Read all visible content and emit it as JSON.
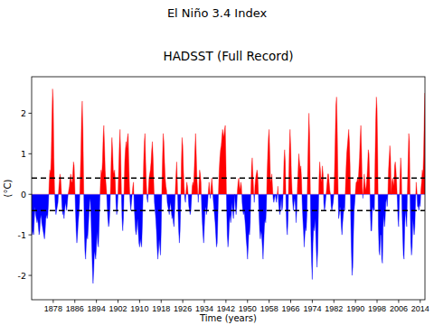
{
  "chart_data": {
    "type": "area",
    "title": "El Niño 3.4 Index",
    "subtitle": "HADSST (Full Record)",
    "x_label": "Time (years)",
    "y_label": "(°C)",
    "colors": [
      "#ff0000",
      "#0000ff"
    ],
    "reference_lines": [
      0.4,
      -0.4
    ],
    "xlim": [
      1870,
      2015.75
    ],
    "ylim": [
      -2.6,
      2.9
    ],
    "xticks": [
      1878,
      1886,
      1894,
      1902,
      1910,
      1918,
      1926,
      1934,
      1942,
      1950,
      1958,
      1966,
      1974,
      1982,
      1990,
      1998,
      2006,
      2014
    ],
    "yticks": [
      -2,
      -1,
      0,
      1,
      2
    ],
    "x": [
      1870,
      1870.25,
      1870.5,
      1870.75,
      1871,
      1871.25,
      1871.5,
      1871.75,
      1872,
      1872.25,
      1872.5,
      1872.75,
      1873,
      1873.25,
      1873.5,
      1873.75,
      1874,
      1874.25,
      1874.5,
      1874.75,
      1875,
      1875.25,
      1875.5,
      1875.75,
      1876,
      1876.25,
      1876.5,
      1876.75,
      1877,
      1877.25,
      1877.5,
      1877.75,
      1878,
      1878.25,
      1878.5,
      1878.75,
      1879,
      1879.25,
      1879.5,
      1879.75,
      1880,
      1880.25,
      1880.5,
      1880.75,
      1881,
      1881.25,
      1881.5,
      1881.75,
      1882,
      1882.25,
      1882.5,
      1882.75,
      1883,
      1883.25,
      1883.5,
      1883.75,
      1884,
      1884.25,
      1884.5,
      1884.75,
      1885,
      1885.25,
      1885.5,
      1885.75,
      1886,
      1886.25,
      1886.5,
      1886.75,
      1887,
      1887.25,
      1887.5,
      1887.75,
      1888,
      1888.25,
      1888.5,
      1888.75,
      1889,
      1889.25,
      1889.5,
      1889.75,
      1890,
      1890.25,
      1890.5,
      1890.75,
      1891,
      1891.25,
      1891.5,
      1891.75,
      1892,
      1892.25,
      1892.5,
      1892.75,
      1893,
      1893.25,
      1893.5,
      1893.75,
      1894,
      1894.25,
      1894.5,
      1894.75,
      1895,
      1895.25,
      1895.5,
      1895.75,
      1896,
      1896.25,
      1896.5,
      1896.75,
      1897,
      1897.25,
      1897.5,
      1897.75,
      1898,
      1898.25,
      1898.5,
      1898.75,
      1899,
      1899.25,
      1899.5,
      1899.75,
      1900,
      1900.25,
      1900.5,
      1900.75,
      1901,
      1901.25,
      1901.5,
      1901.75,
      1902,
      1902.25,
      1902.5,
      1902.75,
      1903,
      1903.25,
      1903.5,
      1903.75,
      1904,
      1904.25,
      1904.5,
      1904.75,
      1905,
      1905.25,
      1905.5,
      1905.75,
      1906,
      1906.25,
      1906.5,
      1906.75,
      1907,
      1907.25,
      1907.5,
      1907.75,
      1908,
      1908.25,
      1908.5,
      1908.75,
      1909,
      1909.25,
      1909.5,
      1909.75,
      1910,
      1910.25,
      1910.5,
      1910.75,
      1911,
      1911.25,
      1911.5,
      1911.75,
      1912,
      1912.25,
      1912.5,
      1912.75,
      1913,
      1913.25,
      1913.5,
      1913.75,
      1914,
      1914.25,
      1914.5,
      1914.75,
      1915,
      1915.25,
      1915.5,
      1915.75,
      1916,
      1916.25,
      1916.5,
      1916.75,
      1917,
      1917.25,
      1917.5,
      1917.75,
      1918,
      1918.25,
      1918.5,
      1918.75,
      1919,
      1919.25,
      1919.5,
      1919.75,
      1920,
      1920.25,
      1920.5,
      1920.75,
      1921,
      1921.25,
      1921.5,
      1921.75,
      1922,
      1922.25,
      1922.5,
      1922.75,
      1923,
      1923.25,
      1923.5,
      1923.75,
      1924,
      1924.25,
      1924.5,
      1924.75,
      1925,
      1925.25,
      1925.5,
      1925.75,
      1926,
      1926.25,
      1926.5,
      1926.75,
      1927,
      1927.25,
      1927.5,
      1927.75,
      1928,
      1928.25,
      1928.5,
      1928.75,
      1929,
      1929.25,
      1929.5,
      1929.75,
      1930,
      1930.25,
      1930.5,
      1930.75,
      1931,
      1931.25,
      1931.5,
      1931.75,
      1932,
      1932.25,
      1932.5,
      1932.75,
      1933,
      1933.25,
      1933.5,
      1933.75,
      1934,
      1934.25,
      1934.5,
      1934.75,
      1935,
      1935.25,
      1935.5,
      1935.75,
      1936,
      1936.25,
      1936.5,
      1936.75,
      1937,
      1937.25,
      1937.5,
      1937.75,
      1938,
      1938.25,
      1938.5,
      1938.75,
      1939,
      1939.25,
      1939.5,
      1939.75,
      1940,
      1940.25,
      1940.5,
      1940.75,
      1941,
      1941.25,
      1941.5,
      1941.75,
      1942,
      1942.25,
      1942.5,
      1942.75,
      1943,
      1943.25,
      1943.5,
      1943.75,
      1944,
      1944.25,
      1944.5,
      1944.75,
      1945,
      1945.25,
      1945.5,
      1945.75,
      1946,
      1946.25,
      1946.5,
      1946.75,
      1947,
      1947.25,
      1947.5,
      1947.75,
      1948,
      1948.25,
      1948.5,
      1948.75,
      1949,
      1949.25,
      1949.5,
      1949.75,
      1950,
      1950.25,
      1950.5,
      1950.75,
      1951,
      1951.25,
      1951.5,
      1951.75,
      1952,
      1952.25,
      1952.5,
      1952.75,
      1953,
      1953.25,
      1953.5,
      1953.75,
      1954,
      1954.25,
      1954.5,
      1954.75,
      1955,
      1955.25,
      1955.5,
      1955.75,
      1956,
      1956.25,
      1956.5,
      1956.75,
      1957,
      1957.25,
      1957.5,
      1957.75,
      1958,
      1958.25,
      1958.5,
      1958.75,
      1959,
      1959.25,
      1959.5,
      1959.75,
      1960,
      1960.25,
      1960.5,
      1960.75,
      1961,
      1961.25,
      1961.5,
      1961.75,
      1962,
      1962.25,
      1962.5,
      1962.75,
      1963,
      1963.25,
      1963.5,
      1963.75,
      1964,
      1964.25,
      1964.5,
      1964.75,
      1965,
      1965.25,
      1965.5,
      1965.75,
      1966,
      1966.25,
      1966.5,
      1966.75,
      1967,
      1967.25,
      1967.5,
      1967.75,
      1968,
      1968.25,
      1968.5,
      1968.75,
      1969,
      1969.25,
      1969.5,
      1969.75,
      1970,
      1970.25,
      1970.5,
      1970.75,
      1971,
      1971.25,
      1971.5,
      1971.75,
      1972,
      1972.25,
      1972.5,
      1972.75,
      1973,
      1973.25,
      1973.5,
      1973.75,
      1974,
      1974.25,
      1974.5,
      1974.75,
      1975,
      1975.25,
      1975.5,
      1975.75,
      1976,
      1976.25,
      1976.5,
      1976.75,
      1977,
      1977.25,
      1977.5,
      1977.75,
      1978,
      1978.25,
      1978.5,
      1978.75,
      1979,
      1979.25,
      1979.5,
      1979.75,
      1980,
      1980.25,
      1980.5,
      1980.75,
      1981,
      1981.25,
      1981.5,
      1981.75,
      1982,
      1982.25,
      1982.5,
      1982.75,
      1983,
      1983.25,
      1983.5,
      1983.75,
      1984,
      1984.25,
      1984.5,
      1984.75,
      1985,
      1985.25,
      1985.5,
      1985.75,
      1986,
      1986.25,
      1986.5,
      1986.75,
      1987,
      1987.25,
      1987.5,
      1987.75,
      1988,
      1988.25,
      1988.5,
      1988.75,
      1989,
      1989.25,
      1989.5,
      1989.75,
      1990,
      1990.25,
      1990.5,
      1990.75,
      1991,
      1991.25,
      1991.5,
      1991.75,
      1992,
      1992.25,
      1992.5,
      1992.75,
      1993,
      1993.25,
      1993.5,
      1993.75,
      1994,
      1994.25,
      1994.5,
      1994.75,
      1995,
      1995.25,
      1995.5,
      1995.75,
      1996,
      1996.25,
      1996.5,
      1996.75,
      1997,
      1997.25,
      1997.5,
      1997.75,
      1998,
      1998.25,
      1998.5,
      1998.75,
      1999,
      1999.25,
      1999.5,
      1999.75,
      2000,
      2000.25,
      2000.5,
      2000.75,
      2001,
      2001.25,
      2001.5,
      2001.75,
      2002,
      2002.25,
      2002.5,
      2002.75,
      2003,
      2003.25,
      2003.5,
      2003.75,
      2004,
      2004.25,
      2004.5,
      2004.75,
      2005,
      2005.25,
      2005.5,
      2005.75,
      2006,
      2006.25,
      2006.5,
      2006.75,
      2007,
      2007.25,
      2007.5,
      2007.75,
      2008,
      2008.25,
      2008.5,
      2008.75,
      2009,
      2009.25,
      2009.5,
      2009.75,
      2010,
      2010.25,
      2010.5,
      2010.75,
      2011,
      2011.25,
      2011.5,
      2011.75,
      2012,
      2012.25,
      2012.5,
      2012.75,
      2013,
      2013.25,
      2013.5,
      2013.75,
      2014,
      2014.25,
      2014.5,
      2014.75,
      2015,
      2015.25,
      2015.5,
      2015.75
    ],
    "values": [
      -0.8,
      -1.0,
      -0.9,
      -1.0,
      -0.6,
      -0.3,
      -0.5,
      -0.6,
      -0.7,
      -0.6,
      -0.8,
      -1.0,
      -0.9,
      -0.6,
      -0.5,
      -0.7,
      -0.8,
      -0.9,
      -1.0,
      -1.1,
      -0.9,
      -0.6,
      -0.5,
      -0.6,
      -0.5,
      -0.2,
      0.3,
      0.6,
      0.5,
      0.9,
      1.8,
      2.6,
      2.3,
      0.9,
      0.1,
      -0.3,
      -0.5,
      -0.4,
      -0.3,
      -0.2,
      0.1,
      0.3,
      0.5,
      0.4,
      0.1,
      -0.3,
      -0.5,
      -0.4,
      -0.6,
      -0.4,
      -0.2,
      -0.3,
      -0.4,
      -0.2,
      0.0,
      0.1,
      0.2,
      0.4,
      0.5,
      0.3,
      0.3,
      0.5,
      0.8,
      0.7,
      0.2,
      -0.4,
      -0.9,
      -1.2,
      -1.0,
      -0.7,
      -0.5,
      -0.2,
      0.4,
      1.0,
      1.9,
      2.3,
      1.6,
      0.4,
      -0.8,
      -1.4,
      -1.6,
      -1.2,
      -1.0,
      -1.1,
      -0.8,
      -0.5,
      -0.2,
      -0.1,
      -0.6,
      -1.2,
      -1.8,
      -2.2,
      -1.9,
      -1.4,
      -1.5,
      -1.6,
      -1.3,
      -0.9,
      -1.2,
      -1.3,
      -0.8,
      -0.2,
      0.3,
      0.6,
      0.5,
      0.8,
      1.4,
      1.7,
      1.2,
      0.6,
      0.3,
      0.1,
      -0.3,
      -0.6,
      -0.8,
      -0.7,
      -0.4,
      0.2,
      0.9,
      1.4,
      1.1,
      0.6,
      0.5,
      0.6,
      0.3,
      -0.2,
      -0.5,
      -0.4,
      0.0,
      0.6,
      1.2,
      1.6,
      1.0,
      0.1,
      -0.6,
      -0.9,
      -0.6,
      0.1,
      0.8,
      1.1,
      1.3,
      1.1,
      1.4,
      1.5,
      0.8,
      0.2,
      -0.2,
      -0.4,
      -0.2,
      0.0,
      0.2,
      0.3,
      -0.3,
      -0.6,
      -0.9,
      -1.0,
      -0.8,
      -0.6,
      -0.9,
      -1.2,
      -1.3,
      -1.1,
      -1.2,
      -1.3,
      -0.8,
      -0.1,
      0.8,
      1.3,
      1.5,
      0.8,
      0.3,
      -0.1,
      -0.2,
      0.1,
      0.4,
      0.5,
      0.6,
      0.8,
      1.1,
      1.3,
      0.9,
      0.3,
      -0.2,
      -0.4,
      -0.6,
      -0.9,
      -1.3,
      -1.6,
      -1.4,
      -1.1,
      -1.3,
      -1.5,
      -0.9,
      0.1,
      0.9,
      1.5,
      1.3,
      0.8,
      0.4,
      0.2,
      0.1,
      -0.2,
      -0.3,
      -0.4,
      -0.5,
      -0.3,
      -0.2,
      -0.4,
      -0.6,
      -0.5,
      -0.7,
      -0.8,
      -0.4,
      0.1,
      0.5,
      0.8,
      0.3,
      -0.4,
      -0.9,
      -1.2,
      -0.9,
      -0.2,
      0.8,
      1.4,
      1.2,
      0.6,
      0.2,
      -0.1,
      -0.2,
      0.1,
      0.3,
      0.2,
      0.0,
      -0.3,
      -0.4,
      -0.5,
      -0.4,
      -0.1,
      0.2,
      0.3,
      0.2,
      0.6,
      1.1,
      1.5,
      1.0,
      0.4,
      0.1,
      -0.2,
      0.2,
      0.6,
      0.5,
      0.3,
      -0.3,
      -0.7,
      -1.0,
      -1.2,
      -0.8,
      -0.4,
      -0.3,
      -0.5,
      -0.4,
      -0.2,
      0.1,
      0.3,
      0.1,
      -0.1,
      0.2,
      0.4,
      0.2,
      -0.1,
      -0.3,
      -0.5,
      -0.7,
      -1.0,
      -1.3,
      -1.2,
      -0.6,
      0.1,
      0.6,
      0.9,
      1.1,
      1.2,
      1.4,
      1.6,
      1.5,
      1.4,
      1.6,
      1.7,
      0.8,
      -0.3,
      -1.0,
      -1.3,
      -1.1,
      -0.7,
      -0.5,
      -0.7,
      -0.5,
      -0.2,
      -0.4,
      -0.6,
      -0.4,
      0.0,
      -0.3,
      -0.5,
      -0.3,
      0.1,
      0.3,
      0.4,
      0.2,
      0.1,
      0.3,
      0.2,
      -0.2,
      -0.4,
      -0.5,
      -0.4,
      -0.6,
      -0.8,
      -1.1,
      -1.3,
      -1.6,
      -1.3,
      -0.9,
      -1.0,
      -0.7,
      0.1,
      0.7,
      0.9,
      0.5,
      0.1,
      -0.2,
      0.2,
      0.4,
      0.5,
      0.6,
      0.5,
      0.1,
      -0.5,
      -0.9,
      -1.1,
      -0.9,
      -1.0,
      -1.3,
      -1.6,
      -1.2,
      -0.8,
      -0.6,
      -0.7,
      -0.3,
      0.5,
      1.0,
      1.4,
      1.6,
      1.0,
      0.4,
      0.3,
      0.5,
      0.2,
      -0.1,
      -0.2,
      -0.1,
      0.0,
      -0.1,
      -0.2,
      0.0,
      0.2,
      -0.2,
      -0.4,
      -0.5,
      -0.3,
      -0.1,
      -0.4,
      -0.3,
      0.1,
      0.8,
      1.1,
      0.8,
      -0.2,
      -0.8,
      -1.0,
      -0.6,
      0.3,
      1.1,
      1.6,
      1.2,
      0.5,
      0.1,
      -0.2,
      -0.4,
      -0.2,
      -0.1,
      -0.3,
      -0.7,
      -0.4,
      0.2,
      0.6,
      1.0,
      0.8,
      0.6,
      0.7,
      0.4,
      -0.2,
      -0.6,
      -0.9,
      -1.3,
      -1.0,
      -0.8,
      -0.9,
      -0.5,
      0.5,
      1.3,
      2.0,
      1.5,
      0.2,
      -1.0,
      -1.7,
      -2.1,
      -1.2,
      -0.8,
      -0.9,
      -0.6,
      -0.9,
      -1.4,
      -1.8,
      -1.4,
      -0.5,
      0.4,
      0.8,
      0.6,
      0.3,
      0.4,
      0.7,
      0.5,
      -0.2,
      -0.4,
      -0.3,
      -0.1,
      0.1,
      0.3,
      0.5,
      0.5,
      0.3,
      0.1,
      0.0,
      -0.3,
      -0.4,
      -0.3,
      -0.2,
      0.0,
      0.6,
      1.4,
      2.2,
      2.4,
      1.6,
      0.4,
      -0.6,
      -0.5,
      -0.3,
      -0.4,
      -0.8,
      -1.0,
      -0.7,
      -0.5,
      -0.3,
      -0.4,
      0.1,
      0.6,
      1.0,
      1.2,
      1.4,
      1.6,
      1.3,
      0.7,
      -0.6,
      -1.4,
      -2.0,
      -1.8,
      -1.0,
      -0.4,
      -0.2,
      0.1,
      0.3,
      0.3,
      0.4,
      0.3,
      0.6,
      0.9,
      1.4,
      1.7,
      1.1,
      0.2,
      -0.1,
      0.2,
      0.5,
      0.3,
      0.1,
      0.2,
      0.4,
      0.7,
      1.1,
      1.0,
      0.4,
      -0.4,
      -0.9,
      -0.9,
      -0.4,
      -0.3,
      -0.4,
      -0.4,
      0.8,
      1.8,
      2.4,
      2.1,
      0.9,
      -0.8,
      -1.4,
      -1.5,
      -1.0,
      -1.0,
      -1.6,
      -1.7,
      -0.8,
      -0.5,
      -0.8,
      -0.6,
      -0.2,
      -0.1,
      -0.3,
      0.0,
      0.6,
      0.9,
      1.2,
      0.9,
      0.0,
      0.3,
      0.4,
      0.3,
      0.2,
      0.7,
      0.8,
      0.6,
      0.3,
      -0.1,
      -0.6,
      -0.8,
      -0.2,
      0.4,
      0.9,
      0.6,
      -0.4,
      -1.0,
      -1.5,
      -1.6,
      -0.8,
      -0.4,
      -0.6,
      -0.8,
      0.1,
      0.8,
      1.5,
      1.3,
      -0.1,
      -1.2,
      -1.5,
      -1.3,
      -0.6,
      -0.8,
      -1.0,
      -0.8,
      -0.2,
      0.3,
      0.1,
      -0.3,
      -0.3,
      -0.4,
      -0.2,
      -0.3,
      0.1,
      0.3,
      0.6,
      0.5,
      1.0,
      1.9,
      2.5
    ]
  }
}
